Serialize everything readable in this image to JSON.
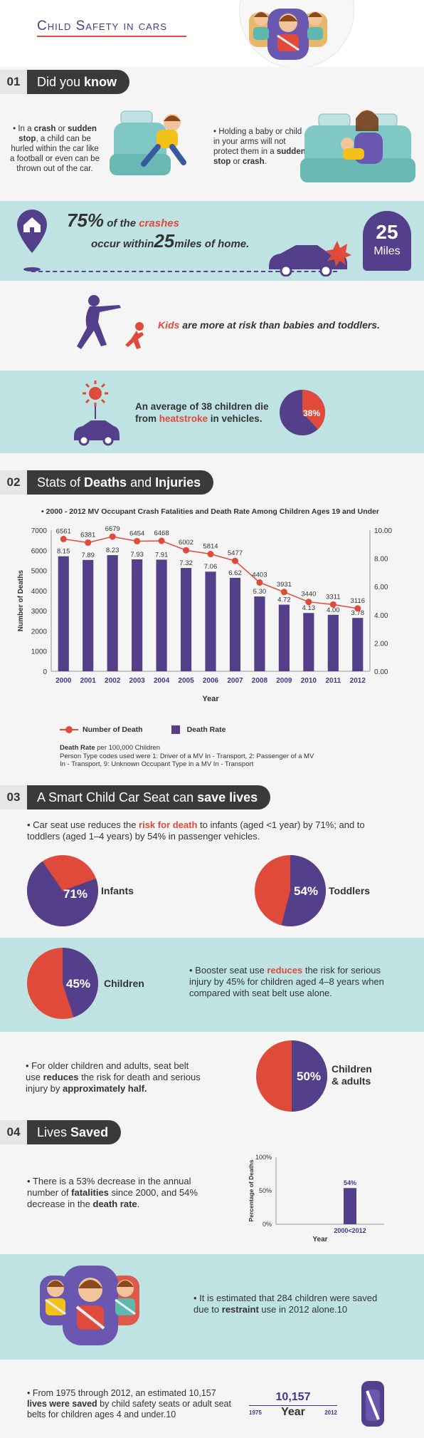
{
  "header": {
    "title": "Child Safety in cars"
  },
  "s1": {
    "num": "01",
    "title_a": "Did you ",
    "title_b": "know",
    "p1_a": "In a ",
    "p1_b": "crash",
    "p1_c": " or ",
    "p1_d": "sudden stop",
    "p1_e": ", a child can be hurled within the car like a football or even can be thrown out of the car.",
    "p2_a": "Holding a baby or child in your arms will not protect them in a ",
    "p2_b": "sudden stop",
    "p2_c": " or ",
    "p2_d": "crash",
    "p2_e": "."
  },
  "b75": {
    "pct": "75%",
    "of": " of the ",
    "crashes": "crashes",
    "occur": "occur within",
    "num": "25",
    "miles_of": "miles of home.",
    "badge_num": "25",
    "badge_unit": "Miles"
  },
  "kids": {
    "a": "Kids",
    "b": " are more at risk than babies and toddlers."
  },
  "heat": {
    "a": "An average of 38 children die",
    "b": "from ",
    "c": "heatstroke",
    "d": " in vehicles.",
    "pct_label": "38%",
    "pct": 38
  },
  "s2": {
    "num": "02",
    "title_a": "Stats of ",
    "title_b": "Deaths",
    "title_c": " and ",
    "title_d": "Injuries"
  },
  "chart_data": {
    "type": "bar",
    "title": "2000 - 2012 MV Occupant Crash Fatalities and Death Rate Among Children Ages 19 and Under",
    "xlabel": "Year",
    "ylabel": "Number of Deaths",
    "categories": [
      "2000",
      "2001",
      "2002",
      "2003",
      "2004",
      "2005",
      "2006",
      "2007",
      "2008",
      "2009",
      "2010",
      "2011",
      "2012"
    ],
    "ylim": [
      0,
      7000
    ],
    "y_ticks": [
      "0",
      "1000",
      "2000",
      "3000",
      "4000",
      "5000",
      "6000",
      "7000"
    ],
    "y2lim": [
      0,
      10
    ],
    "y2_ticks": [
      "0.00",
      "2.00",
      "4.00",
      "6.00",
      "8.00",
      "10.00"
    ],
    "series": [
      {
        "name": "Number of Death",
        "type": "line",
        "color": "#e04a3a",
        "values": [
          6561,
          6381,
          6679,
          6454,
          6468,
          6002,
          5814,
          5477,
          4403,
          3931,
          3440,
          3311,
          3116
        ],
        "labels": [
          "6561",
          "6381",
          "6679",
          "6454",
          "6468",
          "6002",
          "5814",
          "5477",
          "4403",
          "3931",
          "3440",
          "3311",
          "3116"
        ]
      },
      {
        "name": "Death Rate",
        "type": "bar",
        "axis": "right",
        "color": "#54408a",
        "values": [
          8.15,
          7.89,
          8.23,
          7.93,
          7.91,
          7.32,
          7.06,
          6.62,
          5.3,
          4.72,
          4.13,
          4.0,
          3.78
        ],
        "labels": [
          "8.15",
          "7.89",
          "8.23",
          "7.93",
          "7.91",
          "7.32",
          "7.06",
          "6.62",
          "5.30",
          "4.72",
          "4.13",
          "4.00",
          "3.78"
        ]
      }
    ],
    "grid": false,
    "legend": "bottom-left"
  },
  "legend": {
    "line": "Number of Death",
    "bar": "Death Rate"
  },
  "note": {
    "a": "Death Rate",
    "b": " per 100,000 Children",
    "c": "Person Type codes used were 1: Driver of a MV In - Transport, 2: Passenger of a MV In  -  Transport, 9: Unknown Occupant Type in a MV In - Transport"
  },
  "s3": {
    "num": "03",
    "title_a": "A Smart Child Car Seat can ",
    "title_b": "save lives",
    "intro_a": "Car seat use reduces the ",
    "intro_b": "risk for death",
    "intro_c": " to infants (aged <1 year) by 71%; and to toddlers (aged 1–4 years) by 54% in passenger vehicles.",
    "infants_pct": "71%",
    "infants_val": 71,
    "infants": "Infants",
    "toddlers_pct": "54%",
    "toddlers_val": 54,
    "toddlers": "Toddlers",
    "children_pct": "45%",
    "children_val": 45,
    "children": "Children",
    "booster_a": "Booster seat use ",
    "booster_b": "reduces",
    "booster_c": " the risk for serious injury by 45% for children aged 4–8 years when compared with seat belt use alone.",
    "older_a": "For older children and adults, seat belt use ",
    "older_b": "reduces",
    "older_c": " the risk for death and serious injury by ",
    "older_d": "approximately half.",
    "adults_pct": "50%",
    "adults_val": 50,
    "adults_a": "Children",
    "adults_b": "& adults"
  },
  "s4": {
    "num": "04",
    "title_a": "Lives ",
    "title_b": "Saved",
    "p1_a": "There is a 53% decrease in the annual number of ",
    "p1_b": "fatalities",
    "p1_c": " since 2000, and 54%  decrease in the ",
    "p1_d": "death rate",
    "p1_e": ".",
    "mini": {
      "ylabel": "Percentage of Deaths",
      "ticks": [
        "0%",
        "50%",
        "100%"
      ],
      "bar_label": "54%",
      "value": 54,
      "xlabel": "Year",
      "category": "2000<2012"
    },
    "p2_a": "It is estimated that 284 children were saved due to ",
    "p2_b": "restraint",
    "p2_c": " use in 2012 alone.10",
    "p3_a": "From 1975 through 2012, an estimated 10,157 ",
    "p3_b": "lives were saved",
    "p3_c": " by child safety seats or adult seat belts for children ages 4 and under.10",
    "big_num": "10,157",
    "year_label": "Year",
    "y_start": "1975",
    "y_end": "2012"
  }
}
